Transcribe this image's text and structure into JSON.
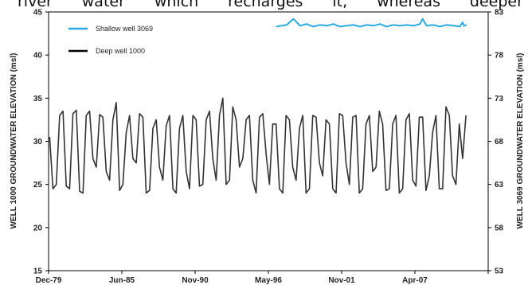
{
  "header_text_words": [
    "river",
    "water",
    "which",
    "recharges",
    "it,",
    "whereas",
    "deeper"
  ],
  "chart_data": {
    "type": "line",
    "title": "",
    "x_tick_labels": [
      "Dec-79",
      "Jun-85",
      "Nov-90",
      "May-96",
      "Nov-01",
      "Apr-07"
    ],
    "left_axis": {
      "label": "WELL 1000 GROUNDWATER ELEVATION (msl)",
      "ylim": [
        15,
        45
      ],
      "ticks": [
        15,
        20,
        25,
        30,
        35,
        40,
        45
      ]
    },
    "right_axis": {
      "label": "WELL 3069 GROUNDWATER ELEVATION (msl)",
      "ylim": [
        53,
        83
      ],
      "ticks": [
        53,
        58,
        63,
        68,
        73,
        78,
        83
      ]
    },
    "grid": false,
    "legend_placement": "top-left",
    "series": [
      {
        "name": "Shallow well 3069",
        "axis": "right",
        "color": "#29abe2",
        "x": [
          1997.0,
          1997.4,
          1997.8,
          1998.3,
          1998.8,
          1999.3,
          1999.8,
          2000.3,
          2000.8,
          2001.3,
          2001.8,
          2002.3,
          2002.8,
          2003.3,
          2003.8,
          2004.3,
          2004.8,
          2005.3,
          2005.8,
          2006.3,
          2006.8,
          2007.3,
          2007.8,
          2008.0,
          2008.3,
          2008.8,
          2009.3,
          2009.8,
          2010.3,
          2010.8,
          2011.0,
          2011.1,
          2011.3
        ],
        "values": [
          81.3,
          81.4,
          81.5,
          82.2,
          81.4,
          81.6,
          81.3,
          81.5,
          81.4,
          81.6,
          81.3,
          81.4,
          81.5,
          81.3,
          81.5,
          81.4,
          81.6,
          81.3,
          81.5,
          81.4,
          81.5,
          81.4,
          81.6,
          82.2,
          81.4,
          81.5,
          81.3,
          81.5,
          81.4,
          81.3,
          81.8,
          81.4,
          81.5
        ]
      },
      {
        "name": "Deep well 1000",
        "axis": "left",
        "color": "#333333",
        "x": [
          1980.0,
          1980.25,
          1980.5,
          1980.75,
          1981.0,
          1981.25,
          1981.5,
          1981.75,
          1982.0,
          1982.25,
          1982.5,
          1982.75,
          1983.0,
          1983.25,
          1983.5,
          1983.75,
          1984.0,
          1984.25,
          1984.5,
          1984.75,
          1985.0,
          1985.25,
          1985.5,
          1985.75,
          1986.0,
          1986.25,
          1986.5,
          1986.75,
          1987.0,
          1987.25,
          1987.5,
          1987.75,
          1988.0,
          1988.25,
          1988.5,
          1988.75,
          1989.0,
          1989.25,
          1989.5,
          1989.75,
          1990.0,
          1990.25,
          1990.5,
          1990.75,
          1991.0,
          1991.25,
          1991.5,
          1991.75,
          1992.0,
          1992.25,
          1992.5,
          1992.75,
          1993.0,
          1993.25,
          1993.5,
          1993.75,
          1994.0,
          1994.25,
          1994.5,
          1994.75,
          1995.0,
          1995.25,
          1995.5,
          1995.75,
          1996.0,
          1996.25,
          1996.5,
          1996.75,
          1997.0,
          1997.25,
          1997.5,
          1997.75,
          1998.0,
          1998.25,
          1998.5,
          1998.75,
          1999.0,
          1999.25,
          1999.5,
          1999.75,
          2000.0,
          2000.25,
          2000.5,
          2000.75,
          2001.0,
          2001.25,
          2001.5,
          2001.75,
          2002.0,
          2002.25,
          2002.5,
          2002.75,
          2003.0,
          2003.25,
          2003.5,
          2003.75,
          2004.0,
          2004.25,
          2004.5,
          2004.75,
          2005.0,
          2005.25,
          2005.5,
          2005.75,
          2006.0,
          2006.25,
          2006.5,
          2006.75,
          2007.0,
          2007.25,
          2007.5,
          2007.75,
          2008.0,
          2008.25,
          2008.5,
          2008.75,
          2009.0,
          2009.25,
          2009.5,
          2009.75,
          2010.0,
          2010.25,
          2010.5,
          2010.75,
          2011.0,
          2011.25
        ],
        "values": [
          30.5,
          24.5,
          25.0,
          33.0,
          33.5,
          24.8,
          24.5,
          33.2,
          33.6,
          24.2,
          24.0,
          33.0,
          33.5,
          28.0,
          27.0,
          33.1,
          32.8,
          26.5,
          25.5,
          32.5,
          34.5,
          24.3,
          25.0,
          31.0,
          33.0,
          28.0,
          27.5,
          33.2,
          32.8,
          24.0,
          24.3,
          31.5,
          32.5,
          27.0,
          25.5,
          31.8,
          33.0,
          24.5,
          24.0,
          31.5,
          33.0,
          26.5,
          24.5,
          33.0,
          32.5,
          24.8,
          25.0,
          32.5,
          33.5,
          28.0,
          25.5,
          33.0,
          35.0,
          25.0,
          25.5,
          34.0,
          32.5,
          27.0,
          28.0,
          32.5,
          33.0,
          25.5,
          24.0,
          32.8,
          33.2,
          28.5,
          25.0,
          32.0,
          32.0,
          24.5,
          24.0,
          33.0,
          32.5,
          27.0,
          25.5,
          31.5,
          33.0,
          24.0,
          24.5,
          33.0,
          32.8,
          27.5,
          26.0,
          32.5,
          32.0,
          24.5,
          24.0,
          33.2,
          33.0,
          27.5,
          25.0,
          32.8,
          33.0,
          24.0,
          24.5,
          32.0,
          33.0,
          26.5,
          27.0,
          33.5,
          32.0,
          24.3,
          24.5,
          32.0,
          33.0,
          24.0,
          24.5,
          32.5,
          33.2,
          25.5,
          24.8,
          32.8,
          32.8,
          24.3,
          26.0,
          31.0,
          33.0,
          24.5,
          24.5,
          34.0,
          33.0,
          26.0,
          25.0,
          32.0,
          28.0,
          33.0
        ]
      }
    ]
  }
}
